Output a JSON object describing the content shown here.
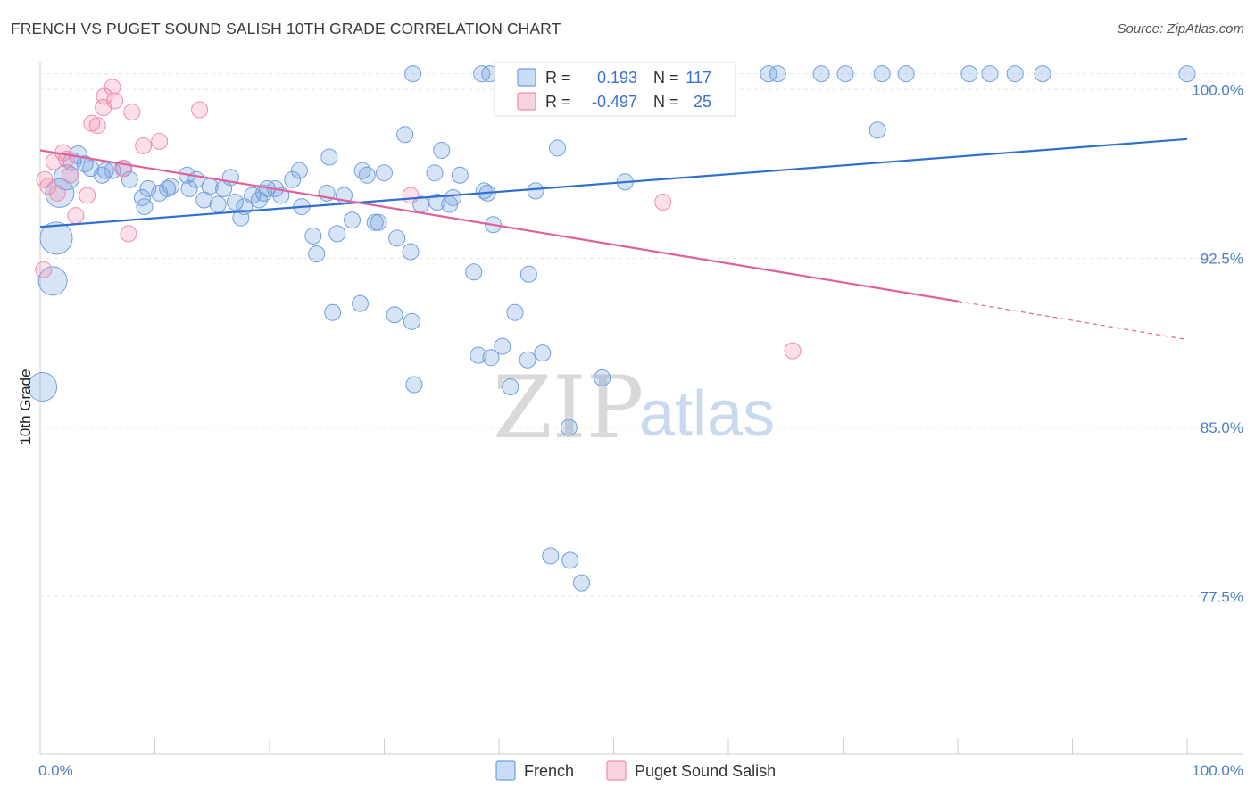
{
  "header": {
    "title": "FRENCH VS PUGET SOUND SALISH 10TH GRADE CORRELATION CHART",
    "source": "Source: ZipAtlas.com"
  },
  "watermark": {
    "zip": "ZIP",
    "atlas": "atlas"
  },
  "legend": {
    "r_label": "R =",
    "n_label": "N =",
    "french_r": "0.193",
    "french_n": "117",
    "salish_r": "-0.497",
    "salish_n": "25"
  },
  "chart_data": {
    "type": "scatter",
    "title": "FRENCH VS PUGET SOUND SALISH 10TH GRADE CORRELATION CHART",
    "xlabel": "",
    "ylabel": "10th Grade",
    "xlim": [
      0,
      100
    ],
    "ylim": [
      70.5,
      101.2
    ],
    "x_tick_labels": [
      "0.0%",
      "100.0%"
    ],
    "y_ticks": [
      77.5,
      85.0,
      92.5,
      100.0
    ],
    "y_tick_labels": [
      "77.5%",
      "85.0%",
      "92.5%",
      "100.0%"
    ],
    "grid": true,
    "legend_position": "top-center",
    "colors": {
      "french": "#6f9fe0",
      "salish": "#f08db0",
      "french_line": "#2f6fd0",
      "salish_line": "#e0619a"
    },
    "series": [
      {
        "name": "French",
        "points": [
          [
            0.2,
            86.8,
            16
          ],
          [
            1.1,
            91.5,
            16
          ],
          [
            1.4,
            93.4,
            18
          ],
          [
            1.7,
            95.4,
            16
          ],
          [
            2.3,
            96.1,
            14
          ],
          [
            2.8,
            96.8,
            10
          ],
          [
            3.3,
            97.1,
            10
          ],
          [
            3.9,
            96.7,
            9
          ],
          [
            4.4,
            96.5,
            9
          ],
          [
            5.4,
            96.2,
            9
          ],
          [
            5.7,
            96.4,
            9
          ],
          [
            6.3,
            96.4,
            9
          ],
          [
            7.3,
            96.5,
            9
          ],
          [
            7.8,
            96.0,
            9
          ],
          [
            8.9,
            95.2,
            9
          ],
          [
            9.1,
            94.8,
            9
          ],
          [
            9.4,
            95.6,
            9
          ],
          [
            10.4,
            95.4,
            9
          ],
          [
            11.1,
            95.6,
            9
          ],
          [
            11.4,
            95.7,
            9
          ],
          [
            12.8,
            96.2,
            9
          ],
          [
            13.0,
            95.6,
            9
          ],
          [
            13.6,
            96.0,
            9
          ],
          [
            14.3,
            95.1,
            9
          ],
          [
            14.8,
            95.7,
            9
          ],
          [
            15.5,
            94.9,
            9
          ],
          [
            16.0,
            95.6,
            9
          ],
          [
            16.6,
            96.1,
            9
          ],
          [
            17.0,
            95.0,
            9
          ],
          [
            17.5,
            94.3,
            9
          ],
          [
            17.8,
            94.8,
            9
          ],
          [
            18.5,
            95.3,
            9
          ],
          [
            19.1,
            95.1,
            9
          ],
          [
            19.5,
            95.4,
            9
          ],
          [
            19.8,
            95.6,
            9
          ],
          [
            20.5,
            95.6,
            9
          ],
          [
            21.0,
            95.3,
            9
          ],
          [
            22.0,
            96.0,
            9
          ],
          [
            22.6,
            96.4,
            9
          ],
          [
            22.8,
            94.8,
            9
          ],
          [
            23.8,
            93.5,
            9
          ],
          [
            24.1,
            92.7,
            9
          ],
          [
            25.0,
            95.4,
            9
          ],
          [
            25.2,
            97.0,
            9
          ],
          [
            25.9,
            93.6,
            9
          ],
          [
            26.5,
            95.3,
            9
          ],
          [
            27.2,
            94.2,
            9
          ],
          [
            28.1,
            96.4,
            9
          ],
          [
            28.5,
            96.2,
            9
          ],
          [
            29.2,
            94.1,
            9
          ],
          [
            29.5,
            94.1,
            9
          ],
          [
            30.0,
            96.3,
            9
          ],
          [
            31.1,
            93.4,
            9
          ],
          [
            31.8,
            98.0,
            9
          ],
          [
            32.3,
            92.8,
            9
          ],
          [
            33.2,
            94.9,
            9
          ],
          [
            34.4,
            96.3,
            9
          ],
          [
            34.6,
            95.0,
            9
          ],
          [
            35.0,
            97.3,
            9
          ],
          [
            35.7,
            94.9,
            9
          ],
          [
            36.0,
            95.2,
            9
          ],
          [
            36.6,
            96.2,
            9
          ],
          [
            37.8,
            91.9,
            9
          ],
          [
            38.2,
            88.2,
            9
          ],
          [
            39.3,
            88.1,
            9
          ],
          [
            39.5,
            94.0,
            9
          ],
          [
            38.7,
            95.5,
            9
          ],
          [
            39.0,
            95.4,
            9
          ],
          [
            40.3,
            88.6,
            9
          ],
          [
            41.0,
            86.8,
            9
          ],
          [
            41.4,
            90.1,
            9
          ],
          [
            42.6,
            91.8,
            9
          ],
          [
            42.5,
            88.0,
            9
          ],
          [
            43.8,
            88.3,
            9
          ],
          [
            43.2,
            95.5,
            9
          ],
          [
            44.5,
            79.3,
            9
          ],
          [
            46.2,
            79.1,
            9
          ],
          [
            47.2,
            78.1,
            9
          ],
          [
            46.1,
            85.0,
            9
          ],
          [
            45.1,
            97.4,
            9
          ],
          [
            49.0,
            87.2,
            9
          ],
          [
            51.0,
            95.9,
            9
          ],
          [
            25.5,
            90.1,
            9
          ],
          [
            27.9,
            90.5,
            9
          ],
          [
            30.9,
            90.0,
            9
          ],
          [
            32.4,
            89.7,
            9
          ],
          [
            32.6,
            86.9,
            9
          ],
          [
            32.5,
            100.7,
            9
          ],
          [
            39.2,
            100.7,
            9
          ],
          [
            40.8,
            100.7,
            9
          ],
          [
            41.5,
            100.7,
            9
          ],
          [
            42.2,
            100.7,
            9
          ],
          [
            43.9,
            100.7,
            9
          ],
          [
            44.8,
            100.7,
            9
          ],
          [
            46.0,
            100.7,
            9
          ],
          [
            47.1,
            100.7,
            9
          ],
          [
            48.4,
            100.7,
            9
          ],
          [
            49.5,
            100.7,
            9
          ],
          [
            50.4,
            100.7,
            9
          ],
          [
            51.5,
            100.7,
            9
          ],
          [
            52.6,
            100.7,
            9
          ],
          [
            55.2,
            100.7,
            9
          ],
          [
            56.5,
            100.7,
            9
          ],
          [
            59.4,
            100.7,
            9
          ],
          [
            63.5,
            100.7,
            9
          ],
          [
            64.3,
            100.7,
            9
          ],
          [
            68.1,
            100.7,
            9
          ],
          [
            70.2,
            100.7,
            9
          ],
          [
            73.4,
            100.7,
            9
          ],
          [
            75.5,
            100.7,
            9
          ],
          [
            81.0,
            100.7,
            9
          ],
          [
            82.8,
            100.7,
            9
          ],
          [
            85.0,
            100.7,
            9
          ],
          [
            87.4,
            100.7,
            9
          ],
          [
            100.0,
            100.7,
            9
          ],
          [
            73.0,
            98.2,
            9
          ],
          [
            38.5,
            100.7,
            9
          ],
          [
            47.0,
            100.0,
            9
          ]
        ]
      },
      {
        "name": "Puget Sound Salish",
        "points": [
          [
            0.3,
            92.0,
            9
          ],
          [
            0.4,
            96.0,
            9
          ],
          [
            0.7,
            95.7,
            9
          ],
          [
            1.2,
            96.8,
            9
          ],
          [
            1.5,
            95.4,
            9
          ],
          [
            2.0,
            97.2,
            9
          ],
          [
            2.3,
            96.9,
            9
          ],
          [
            2.6,
            96.2,
            9
          ],
          [
            3.1,
            94.4,
            9
          ],
          [
            4.1,
            95.3,
            9
          ],
          [
            4.5,
            98.5,
            9
          ],
          [
            5.0,
            98.4,
            9
          ],
          [
            5.5,
            99.2,
            9
          ],
          [
            5.6,
            99.7,
            9
          ],
          [
            6.3,
            100.1,
            9
          ],
          [
            6.5,
            99.5,
            9
          ],
          [
            7.2,
            96.5,
            9
          ],
          [
            7.7,
            93.6,
            9
          ],
          [
            8.0,
            99.0,
            9
          ],
          [
            9.0,
            97.5,
            9
          ],
          [
            10.4,
            97.7,
            9
          ],
          [
            13.9,
            99.1,
            9
          ],
          [
            32.3,
            95.3,
            9
          ],
          [
            54.3,
            95.0,
            9
          ],
          [
            65.6,
            88.4,
            9
          ]
        ]
      }
    ],
    "trend_lines": [
      {
        "series": "French",
        "x": [
          0,
          100
        ],
        "y": [
          93.9,
          97.8
        ]
      },
      {
        "series": "Puget Sound Salish",
        "x": [
          0,
          80
        ],
        "y": [
          97.3,
          90.6
        ],
        "dashed_extension_to": [
          100,
          88.9
        ]
      }
    ]
  },
  "bottom_legend": [
    {
      "label": "French",
      "color": "#6f9fe0"
    },
    {
      "label": "Puget Sound Salish",
      "color": "#f08db0"
    }
  ]
}
